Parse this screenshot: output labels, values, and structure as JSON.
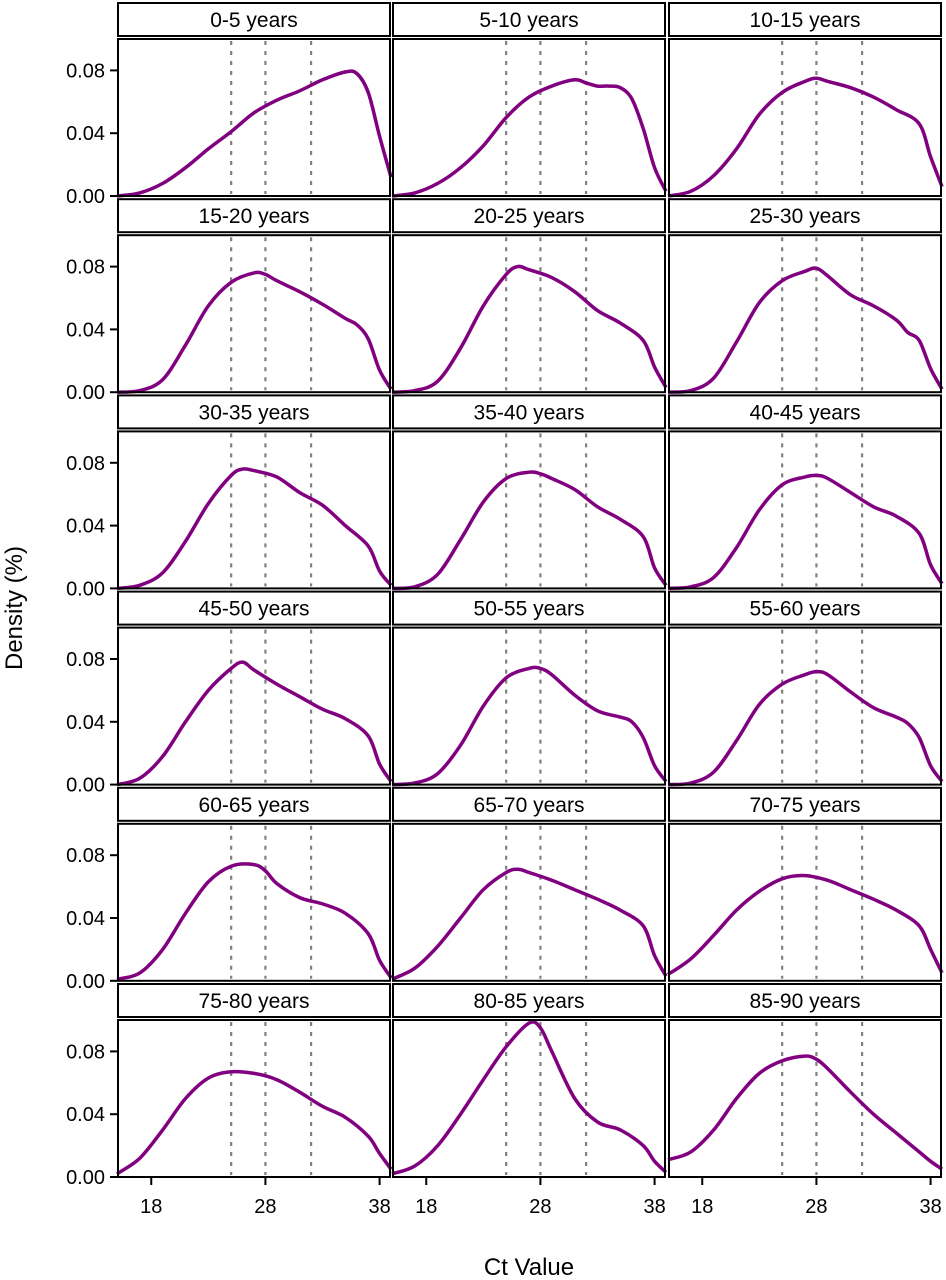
{
  "chart_data": {
    "type": "line",
    "layout": "facet grid, 6 rows x 3 columns",
    "ylabel": "Density (%)",
    "xlabel": "Ct Value",
    "xlim": [
      15,
      39
    ],
    "ylim": [
      0,
      0.1
    ],
    "xticks": [
      18,
      28,
      38
    ],
    "xtick_labels": [
      "18",
      "28",
      "38"
    ],
    "yticks": [
      0.0,
      0.04,
      0.08
    ],
    "ytick_labels": [
      "0.00",
      "0.04",
      "0.08"
    ],
    "reference_lines": [
      25,
      28,
      32
    ],
    "line_color": "#800080",
    "reference_color": "#808080",
    "panels": [
      {
        "label": "0-5 years",
        "x": [
          15,
          17,
          19,
          21,
          23,
          25,
          27,
          29,
          31,
          33,
          35,
          36,
          37,
          38,
          39
        ],
        "y": [
          0.0,
          0.002,
          0.008,
          0.018,
          0.03,
          0.041,
          0.053,
          0.061,
          0.067,
          0.074,
          0.079,
          0.078,
          0.066,
          0.038,
          0.012
        ]
      },
      {
        "label": "5-10 years",
        "x": [
          15,
          17,
          19,
          21,
          23,
          25,
          27,
          29,
          31,
          32,
          33,
          34,
          35,
          36,
          37,
          38,
          39
        ],
        "y": [
          0.0,
          0.002,
          0.008,
          0.018,
          0.032,
          0.05,
          0.063,
          0.07,
          0.074,
          0.072,
          0.07,
          0.07,
          0.069,
          0.062,
          0.043,
          0.018,
          0.003
        ]
      },
      {
        "label": "10-15 years",
        "x": [
          15,
          17,
          19,
          21,
          23,
          25,
          27,
          28,
          29,
          31,
          33,
          35,
          37,
          38,
          39
        ],
        "y": [
          0.0,
          0.003,
          0.013,
          0.03,
          0.052,
          0.066,
          0.073,
          0.075,
          0.073,
          0.069,
          0.063,
          0.055,
          0.046,
          0.025,
          0.006
        ]
      },
      {
        "label": "15-20 years",
        "x": [
          15,
          17,
          19,
          21,
          23,
          25,
          27,
          28,
          29,
          31,
          33,
          35,
          36,
          37,
          38,
          39
        ],
        "y": [
          0.0,
          0.001,
          0.008,
          0.03,
          0.055,
          0.07,
          0.076,
          0.075,
          0.071,
          0.064,
          0.056,
          0.047,
          0.043,
          0.034,
          0.014,
          0.002
        ]
      },
      {
        "label": "20-25 years",
        "x": [
          15,
          17,
          19,
          21,
          23,
          25,
          26,
          27,
          29,
          31,
          33,
          35,
          37,
          38,
          39
        ],
        "y": [
          0.0,
          0.001,
          0.007,
          0.028,
          0.055,
          0.075,
          0.08,
          0.078,
          0.073,
          0.064,
          0.052,
          0.044,
          0.033,
          0.016,
          0.003
        ]
      },
      {
        "label": "25-30 years",
        "x": [
          15,
          17,
          19,
          21,
          23,
          25,
          27,
          28,
          29,
          31,
          33,
          35,
          36,
          37,
          38,
          39
        ],
        "y": [
          0.0,
          0.001,
          0.009,
          0.032,
          0.057,
          0.071,
          0.077,
          0.079,
          0.074,
          0.062,
          0.055,
          0.046,
          0.038,
          0.033,
          0.015,
          0.002
        ]
      },
      {
        "label": "30-35 years",
        "x": [
          15,
          17,
          19,
          21,
          23,
          25,
          26,
          27,
          29,
          31,
          33,
          35,
          37,
          38,
          39
        ],
        "y": [
          0.0,
          0.002,
          0.01,
          0.03,
          0.054,
          0.072,
          0.076,
          0.075,
          0.071,
          0.061,
          0.053,
          0.04,
          0.027,
          0.011,
          0.002
        ]
      },
      {
        "label": "35-40 years",
        "x": [
          15,
          17,
          19,
          21,
          23,
          25,
          27,
          28,
          29,
          31,
          33,
          35,
          37,
          38,
          39
        ],
        "y": [
          0.0,
          0.001,
          0.009,
          0.031,
          0.055,
          0.07,
          0.074,
          0.073,
          0.07,
          0.063,
          0.052,
          0.044,
          0.033,
          0.013,
          0.002
        ]
      },
      {
        "label": "40-45 years",
        "x": [
          15,
          17,
          19,
          21,
          23,
          25,
          27,
          28,
          29,
          31,
          33,
          35,
          37,
          38,
          39
        ],
        "y": [
          0.0,
          0.001,
          0.007,
          0.026,
          0.05,
          0.066,
          0.071,
          0.072,
          0.07,
          0.061,
          0.052,
          0.046,
          0.035,
          0.015,
          0.003
        ]
      },
      {
        "label": "45-50 years",
        "x": [
          15,
          17,
          19,
          21,
          23,
          25,
          26,
          27,
          29,
          31,
          33,
          35,
          37,
          38,
          39
        ],
        "y": [
          0.0,
          0.004,
          0.018,
          0.04,
          0.06,
          0.074,
          0.078,
          0.073,
          0.064,
          0.056,
          0.048,
          0.042,
          0.031,
          0.013,
          0.002
        ]
      },
      {
        "label": "50-55 years",
        "x": [
          15,
          17,
          19,
          21,
          23,
          25,
          27,
          28,
          29,
          31,
          33,
          35,
          36,
          37,
          38,
          39
        ],
        "y": [
          0.0,
          0.001,
          0.007,
          0.025,
          0.05,
          0.068,
          0.074,
          0.074,
          0.07,
          0.057,
          0.047,
          0.043,
          0.04,
          0.03,
          0.012,
          0.002
        ]
      },
      {
        "label": "55-60 years",
        "x": [
          15,
          17,
          19,
          21,
          23,
          25,
          27,
          28,
          29,
          31,
          33,
          35,
          36,
          37,
          38,
          39
        ],
        "y": [
          0.0,
          0.001,
          0.008,
          0.028,
          0.051,
          0.064,
          0.07,
          0.072,
          0.07,
          0.059,
          0.049,
          0.043,
          0.039,
          0.03,
          0.012,
          0.002
        ]
      },
      {
        "label": "60-65 years",
        "x": [
          15,
          17,
          19,
          21,
          23,
          25,
          27,
          28,
          29,
          31,
          33,
          35,
          37,
          38,
          39
        ],
        "y": [
          0.001,
          0.005,
          0.02,
          0.043,
          0.063,
          0.073,
          0.074,
          0.07,
          0.062,
          0.053,
          0.049,
          0.043,
          0.03,
          0.013,
          0.002
        ]
      },
      {
        "label": "65-70 years",
        "x": [
          15,
          17,
          19,
          21,
          23,
          25,
          26,
          27,
          29,
          31,
          33,
          35,
          37,
          38,
          39
        ],
        "y": [
          0.001,
          0.008,
          0.022,
          0.04,
          0.058,
          0.069,
          0.071,
          0.069,
          0.064,
          0.058,
          0.052,
          0.045,
          0.035,
          0.016,
          0.003
        ]
      },
      {
        "label": "70-75 years",
        "x": [
          15,
          17,
          19,
          21,
          23,
          25,
          27,
          29,
          31,
          33,
          35,
          37,
          38,
          39
        ],
        "y": [
          0.004,
          0.014,
          0.029,
          0.045,
          0.057,
          0.065,
          0.067,
          0.064,
          0.058,
          0.052,
          0.045,
          0.035,
          0.02,
          0.005
        ]
      },
      {
        "label": "75-80 years",
        "x": [
          15,
          17,
          19,
          21,
          23,
          25,
          27,
          29,
          31,
          33,
          35,
          37,
          38,
          39
        ],
        "y": [
          0.002,
          0.012,
          0.03,
          0.05,
          0.063,
          0.067,
          0.066,
          0.062,
          0.054,
          0.045,
          0.038,
          0.026,
          0.015,
          0.005
        ]
      },
      {
        "label": "80-85 years",
        "x": [
          15,
          17,
          19,
          21,
          23,
          25,
          27,
          28,
          29,
          31,
          33,
          35,
          37,
          38,
          39
        ],
        "y": [
          0.002,
          0.007,
          0.02,
          0.04,
          0.062,
          0.083,
          0.098,
          0.095,
          0.08,
          0.05,
          0.035,
          0.03,
          0.02,
          0.01,
          0.003
        ]
      },
      {
        "label": "85-90 years",
        "x": [
          15,
          17,
          19,
          21,
          23,
          25,
          27,
          28,
          29,
          31,
          33,
          35,
          37,
          38,
          39
        ],
        "y": [
          0.011,
          0.016,
          0.03,
          0.05,
          0.066,
          0.074,
          0.077,
          0.075,
          0.069,
          0.054,
          0.04,
          0.028,
          0.016,
          0.01,
          0.005
        ]
      }
    ]
  }
}
